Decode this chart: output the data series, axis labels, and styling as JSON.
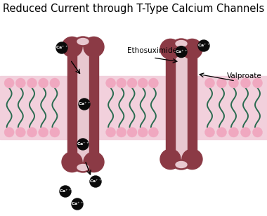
{
  "title": "Reduced Current through T-Type Calcium Channels",
  "title_fontsize": 10.5,
  "bg_color": "#ffffff",
  "dark": "#8B3A45",
  "light_pink": "#C8788A",
  "interior": "#D4A0B0",
  "pore_light": "#E8C8D0",
  "membrane_bg": "#F2D0DC",
  "head_color": "#F0A8C0",
  "tail_color": "#2A6B50",
  "black": "#0a0a0a",
  "white": "#ffffff",
  "label_ethosuximide": "Ethosuximide",
  "label_valproate": "Valproate",
  "label_fontsize": 7.5,
  "ca_fontsize": 4.5
}
